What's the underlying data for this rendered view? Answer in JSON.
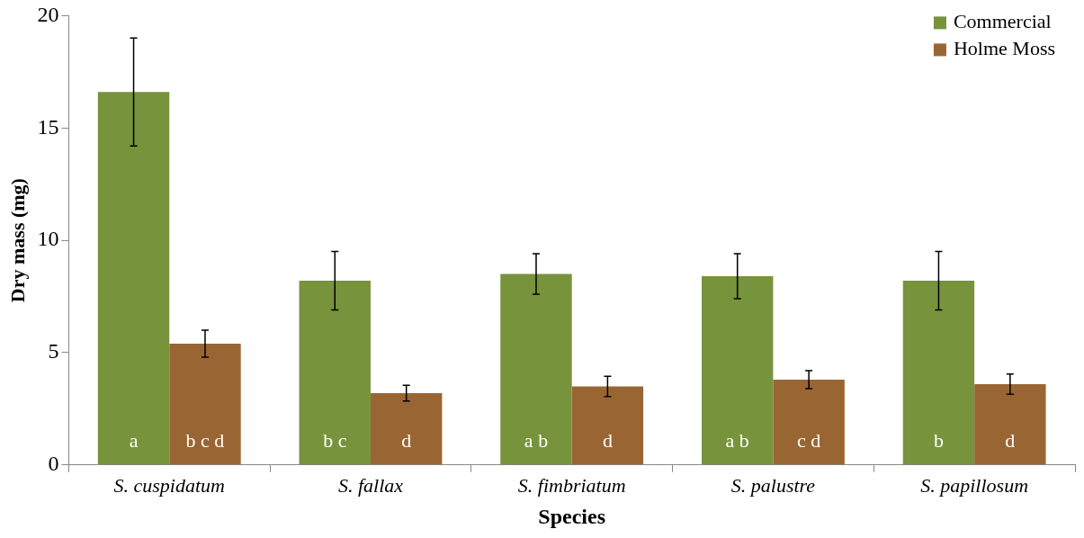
{
  "chart_data": {
    "type": "bar",
    "xlabel": "Species",
    "ylabel": "Dry mass (mg)",
    "categories": [
      "S. cuspidatum",
      "S. fallax",
      "S. fimbriatum",
      "S. palustre",
      "S. papillosum"
    ],
    "series": [
      {
        "name": "Commercial",
        "color": "#77933c",
        "values": [
          16.6,
          8.2,
          8.5,
          8.4,
          8.2
        ],
        "errors": [
          2.4,
          1.3,
          0.9,
          1.0,
          1.3
        ],
        "value_labels": [
          "a",
          "b c",
          "a b",
          "a b",
          "b"
        ]
      },
      {
        "name": "Holme Moss",
        "color": "#996633",
        "values": [
          5.4,
          3.2,
          3.5,
          3.8,
          3.6
        ],
        "errors": [
          0.6,
          0.35,
          0.45,
          0.4,
          0.45
        ],
        "value_labels": [
          "b c d",
          "d",
          "d",
          "c d",
          "d"
        ]
      }
    ],
    "ylim": [
      0,
      20
    ],
    "yticks": [
      0,
      5,
      10,
      15,
      20
    ],
    "grid": false,
    "legend": "top right"
  }
}
